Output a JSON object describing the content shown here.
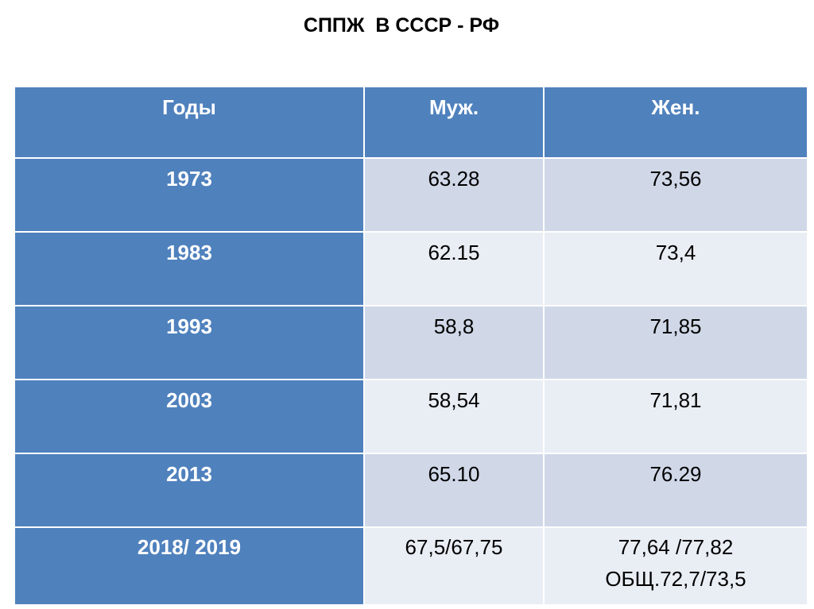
{
  "title": "СППЖ  В СССР - РФ",
  "table": {
    "headers": [
      "Годы",
      "Муж.",
      "Жен."
    ],
    "rows": [
      {
        "year": "1973",
        "male": "63.28",
        "female": "73,56"
      },
      {
        "year": "1983",
        "male": "62.15",
        "female": "73,4"
      },
      {
        "year": "1993",
        "male": "58,8",
        "female": "71,85"
      },
      {
        "year": "2003",
        "male": "58,54",
        "female": "71,81"
      },
      {
        "year": "2013",
        "male": "65.10",
        "female": "76.29"
      }
    ],
    "last_row": {
      "year": "2018/ 2019",
      "male": "67,5/67,75",
      "female_line1": "77,64 /77,82",
      "female_line2": "ОБЩ.72,7/73,5"
    }
  },
  "colors": {
    "header_blue": "#4f81bd",
    "band_dark": "#d0d8e8",
    "band_light": "#e9edf4"
  }
}
